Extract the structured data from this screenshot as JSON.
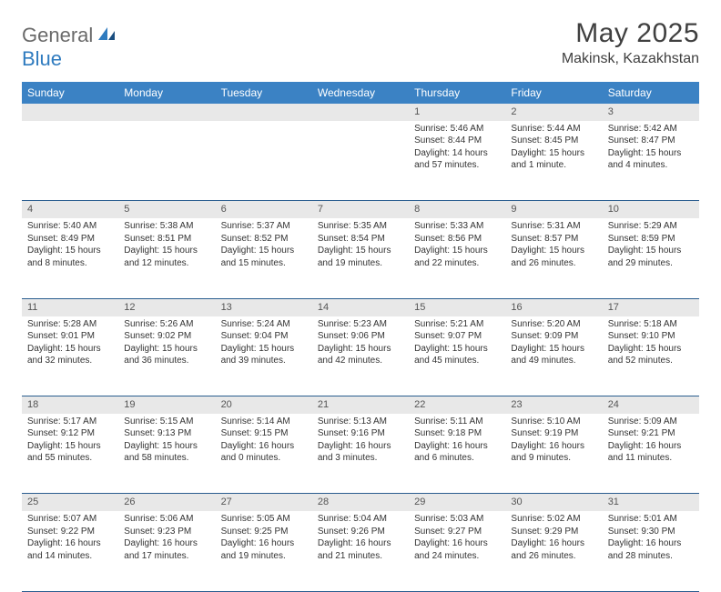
{
  "logo": {
    "part1": "General",
    "part2": "Blue"
  },
  "title": "May 2025",
  "location": "Makinsk, Kazakhstan",
  "colors": {
    "header_bg": "#3b82c4",
    "header_text": "#ffffff",
    "daynum_bg": "#e8e8e8",
    "daynum_text": "#555555",
    "row_divider": "#2a5d8f",
    "body_text": "#333333",
    "logo_gray": "#6a6a6a",
    "logo_blue": "#2f7bbf",
    "title_color": "#404040",
    "page_bg": "#ffffff"
  },
  "typography": {
    "month_title_fontsize": 30,
    "location_fontsize": 16,
    "weekday_fontsize": 12,
    "daynum_fontsize": 11,
    "cell_fontsize": 10,
    "logo_fontsize": 22
  },
  "weekdays": [
    "Sunday",
    "Monday",
    "Tuesday",
    "Wednesday",
    "Thursday",
    "Friday",
    "Saturday"
  ],
  "weeks": [
    [
      null,
      null,
      null,
      null,
      {
        "n": "1",
        "sr": "Sunrise: 5:46 AM",
        "ss": "Sunset: 8:44 PM",
        "dl": "Daylight: 14 hours and 57 minutes."
      },
      {
        "n": "2",
        "sr": "Sunrise: 5:44 AM",
        "ss": "Sunset: 8:45 PM",
        "dl": "Daylight: 15 hours and 1 minute."
      },
      {
        "n": "3",
        "sr": "Sunrise: 5:42 AM",
        "ss": "Sunset: 8:47 PM",
        "dl": "Daylight: 15 hours and 4 minutes."
      }
    ],
    [
      {
        "n": "4",
        "sr": "Sunrise: 5:40 AM",
        "ss": "Sunset: 8:49 PM",
        "dl": "Daylight: 15 hours and 8 minutes."
      },
      {
        "n": "5",
        "sr": "Sunrise: 5:38 AM",
        "ss": "Sunset: 8:51 PM",
        "dl": "Daylight: 15 hours and 12 minutes."
      },
      {
        "n": "6",
        "sr": "Sunrise: 5:37 AM",
        "ss": "Sunset: 8:52 PM",
        "dl": "Daylight: 15 hours and 15 minutes."
      },
      {
        "n": "7",
        "sr": "Sunrise: 5:35 AM",
        "ss": "Sunset: 8:54 PM",
        "dl": "Daylight: 15 hours and 19 minutes."
      },
      {
        "n": "8",
        "sr": "Sunrise: 5:33 AM",
        "ss": "Sunset: 8:56 PM",
        "dl": "Daylight: 15 hours and 22 minutes."
      },
      {
        "n": "9",
        "sr": "Sunrise: 5:31 AM",
        "ss": "Sunset: 8:57 PM",
        "dl": "Daylight: 15 hours and 26 minutes."
      },
      {
        "n": "10",
        "sr": "Sunrise: 5:29 AM",
        "ss": "Sunset: 8:59 PM",
        "dl": "Daylight: 15 hours and 29 minutes."
      }
    ],
    [
      {
        "n": "11",
        "sr": "Sunrise: 5:28 AM",
        "ss": "Sunset: 9:01 PM",
        "dl": "Daylight: 15 hours and 32 minutes."
      },
      {
        "n": "12",
        "sr": "Sunrise: 5:26 AM",
        "ss": "Sunset: 9:02 PM",
        "dl": "Daylight: 15 hours and 36 minutes."
      },
      {
        "n": "13",
        "sr": "Sunrise: 5:24 AM",
        "ss": "Sunset: 9:04 PM",
        "dl": "Daylight: 15 hours and 39 minutes."
      },
      {
        "n": "14",
        "sr": "Sunrise: 5:23 AM",
        "ss": "Sunset: 9:06 PM",
        "dl": "Daylight: 15 hours and 42 minutes."
      },
      {
        "n": "15",
        "sr": "Sunrise: 5:21 AM",
        "ss": "Sunset: 9:07 PM",
        "dl": "Daylight: 15 hours and 45 minutes."
      },
      {
        "n": "16",
        "sr": "Sunrise: 5:20 AM",
        "ss": "Sunset: 9:09 PM",
        "dl": "Daylight: 15 hours and 49 minutes."
      },
      {
        "n": "17",
        "sr": "Sunrise: 5:18 AM",
        "ss": "Sunset: 9:10 PM",
        "dl": "Daylight: 15 hours and 52 minutes."
      }
    ],
    [
      {
        "n": "18",
        "sr": "Sunrise: 5:17 AM",
        "ss": "Sunset: 9:12 PM",
        "dl": "Daylight: 15 hours and 55 minutes."
      },
      {
        "n": "19",
        "sr": "Sunrise: 5:15 AM",
        "ss": "Sunset: 9:13 PM",
        "dl": "Daylight: 15 hours and 58 minutes."
      },
      {
        "n": "20",
        "sr": "Sunrise: 5:14 AM",
        "ss": "Sunset: 9:15 PM",
        "dl": "Daylight: 16 hours and 0 minutes."
      },
      {
        "n": "21",
        "sr": "Sunrise: 5:13 AM",
        "ss": "Sunset: 9:16 PM",
        "dl": "Daylight: 16 hours and 3 minutes."
      },
      {
        "n": "22",
        "sr": "Sunrise: 5:11 AM",
        "ss": "Sunset: 9:18 PM",
        "dl": "Daylight: 16 hours and 6 minutes."
      },
      {
        "n": "23",
        "sr": "Sunrise: 5:10 AM",
        "ss": "Sunset: 9:19 PM",
        "dl": "Daylight: 16 hours and 9 minutes."
      },
      {
        "n": "24",
        "sr": "Sunrise: 5:09 AM",
        "ss": "Sunset: 9:21 PM",
        "dl": "Daylight: 16 hours and 11 minutes."
      }
    ],
    [
      {
        "n": "25",
        "sr": "Sunrise: 5:07 AM",
        "ss": "Sunset: 9:22 PM",
        "dl": "Daylight: 16 hours and 14 minutes."
      },
      {
        "n": "26",
        "sr": "Sunrise: 5:06 AM",
        "ss": "Sunset: 9:23 PM",
        "dl": "Daylight: 16 hours and 17 minutes."
      },
      {
        "n": "27",
        "sr": "Sunrise: 5:05 AM",
        "ss": "Sunset: 9:25 PM",
        "dl": "Daylight: 16 hours and 19 minutes."
      },
      {
        "n": "28",
        "sr": "Sunrise: 5:04 AM",
        "ss": "Sunset: 9:26 PM",
        "dl": "Daylight: 16 hours and 21 minutes."
      },
      {
        "n": "29",
        "sr": "Sunrise: 5:03 AM",
        "ss": "Sunset: 9:27 PM",
        "dl": "Daylight: 16 hours and 24 minutes."
      },
      {
        "n": "30",
        "sr": "Sunrise: 5:02 AM",
        "ss": "Sunset: 9:29 PM",
        "dl": "Daylight: 16 hours and 26 minutes."
      },
      {
        "n": "31",
        "sr": "Sunrise: 5:01 AM",
        "ss": "Sunset: 9:30 PM",
        "dl": "Daylight: 16 hours and 28 minutes."
      }
    ]
  ]
}
